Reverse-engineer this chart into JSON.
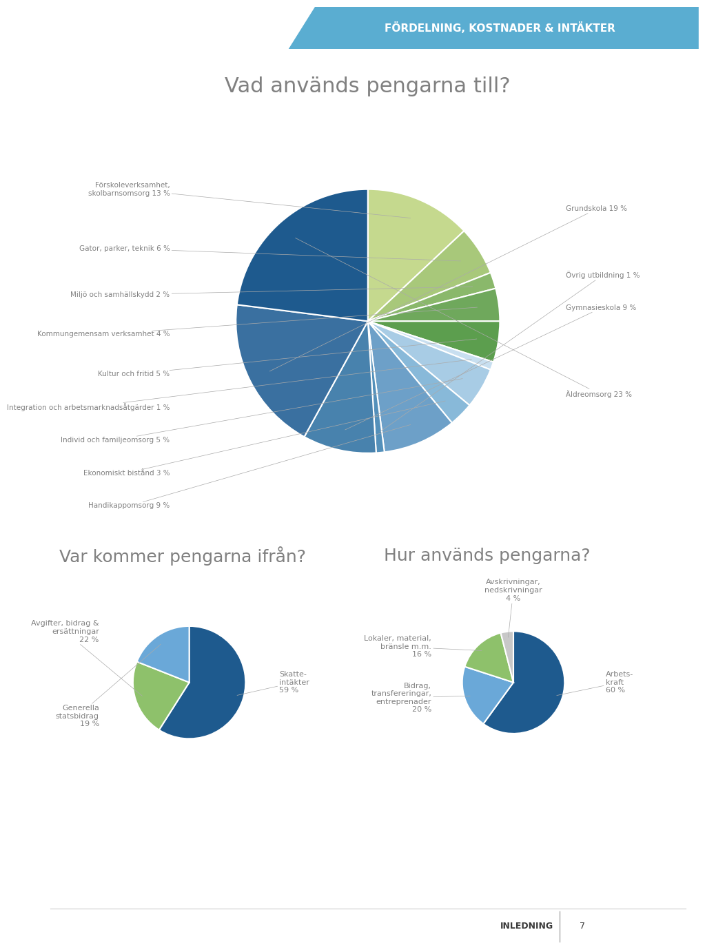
{
  "title_main": "Vad används pengarna till?",
  "title_left": "Var kommer pengarna ifrån?",
  "title_right": "Hur används pengarna?",
  "header_text": "FÖRDELNING, KOSTNADER & INTÄKTER",
  "header_color": "#5aadd1",
  "background_color": "#ffffff",
  "text_color": "#808080",
  "title_color": "#808080",
  "pie1_labels": [
    "Förskoleverksamhet,\nskolbarnsomsorg 13 %",
    "Gator, parker, teknik 6 %",
    "Miljö och samhällskydd 2 %",
    "Kommungemensam verksamhet 4 %",
    "Kultur och fritid 5 %",
    "Integration och arbetsmarknadsåtgärder 1 %",
    "Individ och familjeomsorg 5 %",
    "Ekonomiskt bistånd 3 %",
    "Handikappomsorg 9 %",
    "Övrig utbildning 1 %",
    "Gymnasieskola 9 %",
    "Grundskola 19 %",
    "Äldreomsorg 23 %"
  ],
  "pie1_values": [
    13,
    6,
    2,
    4,
    5,
    1,
    5,
    3,
    9,
    1,
    9,
    19,
    23
  ],
  "pie1_colors": [
    "#c5d98e",
    "#a8c87a",
    "#8ab86b",
    "#6fa85c",
    "#5c9e4e",
    "#c8dff0",
    "#a8cce5",
    "#88b9d9",
    "#6da0c8",
    "#5490ba",
    "#4882ad",
    "#3a70a0",
    "#1e5a8e"
  ],
  "pie2_labels": [
    "Skatte-\nintäkter\n59 %",
    "Avgifter, bidrag &\nersättningar\n22 %",
    "Generella\nstatsbidrag\n19 %"
  ],
  "pie2_values": [
    59,
    22,
    19
  ],
  "pie2_colors": [
    "#1e5a8e",
    "#8ec16b",
    "#6aa8d8"
  ],
  "pie3_labels": [
    "Arbets-\nkraft\n60 %",
    "Bidrag,\ntransfereringar,\nentreprenader\n20 %",
    "Lokaler, material,\nbränsle m.m.\n16 %",
    "Avskrivningar,\nnedskrivningar\n4 %"
  ],
  "pie3_values": [
    60,
    20,
    16,
    4
  ],
  "pie3_colors": [
    "#1e5a8e",
    "#6aa8d8",
    "#8ec16b",
    "#c8c8c8"
  ],
  "footer_text": "INLEDNING",
  "footer_page": "7"
}
